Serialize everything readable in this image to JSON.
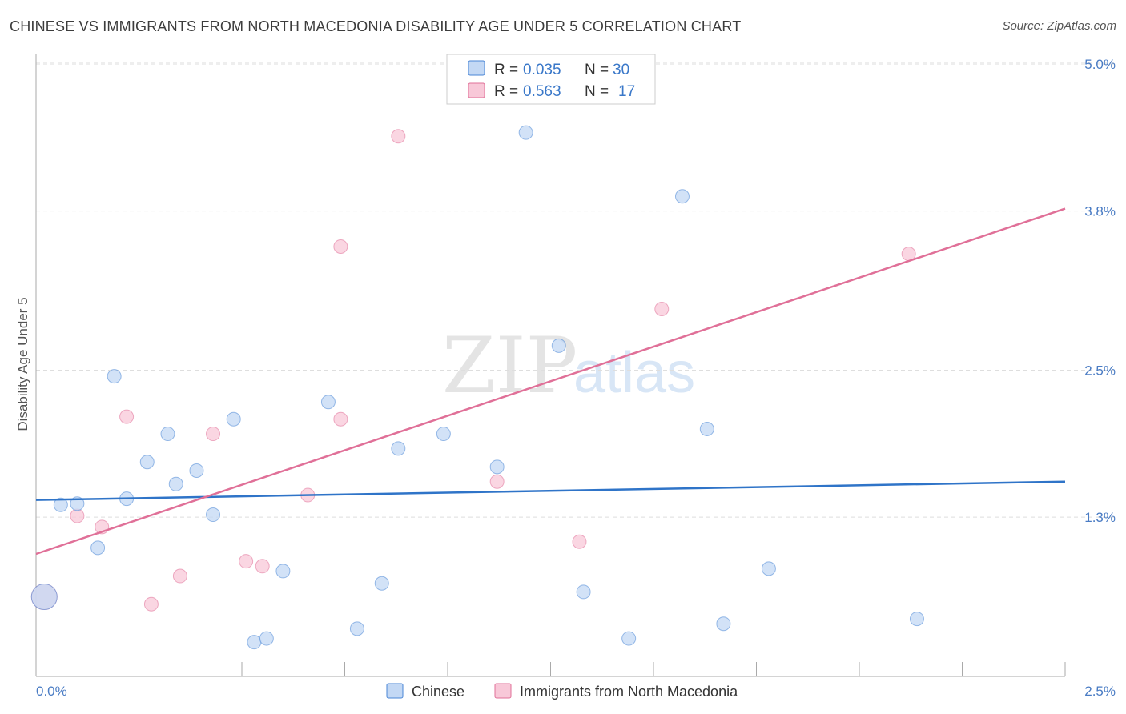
{
  "title": "CHINESE VS IMMIGRANTS FROM NORTH MACEDONIA DISABILITY AGE UNDER 5 CORRELATION CHART",
  "source": "Source: ZipAtlas.com",
  "watermark": {
    "zip": "ZIP",
    "atlas": "atlas"
  },
  "colors": {
    "chinese": "#4a86d6",
    "chinese_fill": "#c3d8f4",
    "macedonia": "#e07098",
    "macedonia_fill": "#f8c8d8"
  },
  "legend": {
    "rows": [
      {
        "r_label": "R =",
        "r_value": "0.035",
        "n_label": "N =",
        "n_value": "30"
      },
      {
        "r_label": "R =",
        "r_value": "0.563",
        "n_label": "N =",
        "n_value": "17"
      }
    ]
  },
  "bottom_legend": [
    "Chinese",
    "Immigrants from North Macedonia"
  ],
  "chart_data": {
    "type": "scatter",
    "title": "CHINESE VS IMMIGRANTS FROM NORTH MACEDONIA DISABILITY AGE UNDER 5 CORRELATION CHART",
    "xlabel": "",
    "ylabel": "Disability Age Under 5",
    "xlim": [
      0,
      2.5
    ],
    "ylim": [
      0,
      5.0
    ],
    "x_tick_labels": [
      "0.0%",
      "2.5%"
    ],
    "y_ticks": [
      1.3,
      2.5,
      3.8,
      5.0
    ],
    "y_tick_labels": [
      "1.3%",
      "2.5%",
      "3.8%",
      "5.0%"
    ],
    "series": [
      {
        "name": "Chinese",
        "r": 0.035,
        "n": 30,
        "trend": {
          "x": [
            0,
            2.5
          ],
          "y": [
            1.44,
            1.59
          ]
        },
        "points": [
          {
            "x": 0.02,
            "y": 0.65,
            "large": true
          },
          {
            "x": 0.06,
            "y": 1.4
          },
          {
            "x": 0.1,
            "y": 1.41
          },
          {
            "x": 0.15,
            "y": 1.05
          },
          {
            "x": 0.19,
            "y": 2.45
          },
          {
            "x": 0.22,
            "y": 1.45
          },
          {
            "x": 0.27,
            "y": 1.75
          },
          {
            "x": 0.32,
            "y": 1.98
          },
          {
            "x": 0.34,
            "y": 1.57
          },
          {
            "x": 0.39,
            "y": 1.68
          },
          {
            "x": 0.43,
            "y": 1.32
          },
          {
            "x": 0.48,
            "y": 2.1
          },
          {
            "x": 0.53,
            "y": 0.28
          },
          {
            "x": 0.56,
            "y": 0.31
          },
          {
            "x": 0.6,
            "y": 0.86
          },
          {
            "x": 0.71,
            "y": 2.24
          },
          {
            "x": 0.78,
            "y": 0.39
          },
          {
            "x": 0.84,
            "y": 0.76
          },
          {
            "x": 0.88,
            "y": 1.86
          },
          {
            "x": 0.99,
            "y": 1.98
          },
          {
            "x": 1.12,
            "y": 1.71
          },
          {
            "x": 1.19,
            "y": 4.44
          },
          {
            "x": 1.27,
            "y": 2.7
          },
          {
            "x": 1.33,
            "y": 0.69
          },
          {
            "x": 1.44,
            "y": 0.31
          },
          {
            "x": 1.57,
            "y": 3.92
          },
          {
            "x": 1.63,
            "y": 2.02
          },
          {
            "x": 1.67,
            "y": 0.43
          },
          {
            "x": 1.78,
            "y": 0.88
          },
          {
            "x": 2.14,
            "y": 0.47
          }
        ]
      },
      {
        "name": "Immigrants from North Macedonia",
        "r": 0.563,
        "n": 17,
        "trend": {
          "x": [
            0,
            2.5
          ],
          "y": [
            1.0,
            3.82
          ]
        },
        "points": [
          {
            "x": 0.02,
            "y": 0.65,
            "large": true
          },
          {
            "x": 0.1,
            "y": 1.31
          },
          {
            "x": 0.16,
            "y": 1.22
          },
          {
            "x": 0.22,
            "y": 2.12
          },
          {
            "x": 0.28,
            "y": 0.59
          },
          {
            "x": 0.35,
            "y": 0.82
          },
          {
            "x": 0.43,
            "y": 1.98
          },
          {
            "x": 0.51,
            "y": 0.94
          },
          {
            "x": 0.55,
            "y": 0.9
          },
          {
            "x": 0.66,
            "y": 1.48
          },
          {
            "x": 0.74,
            "y": 3.51
          },
          {
            "x": 0.74,
            "y": 2.1
          },
          {
            "x": 0.88,
            "y": 4.41
          },
          {
            "x": 1.12,
            "y": 1.59
          },
          {
            "x": 1.32,
            "y": 1.1
          },
          {
            "x": 1.52,
            "y": 3.0
          },
          {
            "x": 2.12,
            "y": 3.45
          }
        ]
      }
    ]
  }
}
